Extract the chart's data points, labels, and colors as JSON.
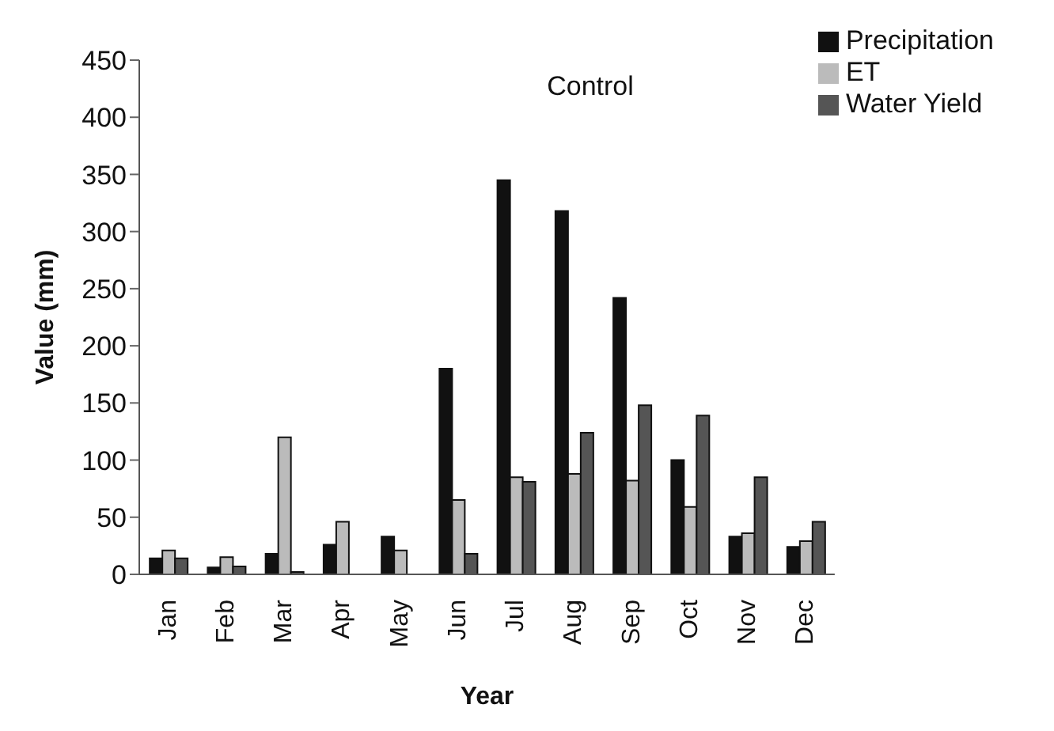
{
  "chart_data": {
    "type": "bar",
    "title": "Control",
    "xlabel": "Year",
    "ylabel": "Value (mm)",
    "categories": [
      "Jan",
      "Feb",
      "Mar",
      "Apr",
      "May",
      "Jun",
      "Jul",
      "Aug",
      "Sep",
      "Oct",
      "Nov",
      "Dec"
    ],
    "series": [
      {
        "name": "Precipitation",
        "color": "#111111",
        "values": [
          14,
          6,
          18,
          26,
          33,
          180,
          345,
          318,
          242,
          100,
          33,
          24
        ]
      },
      {
        "name": "ET",
        "color": "#bbbbbb",
        "values": [
          21,
          15,
          120,
          46,
          21,
          65,
          85,
          88,
          82,
          59,
          36,
          29
        ]
      },
      {
        "name": "Water Yield",
        "color": "#555555",
        "values": [
          14,
          7,
          2,
          0,
          0,
          18,
          81,
          124,
          148,
          139,
          85,
          46
        ]
      }
    ],
    "ylim": [
      0,
      450
    ],
    "yticks": [
      0,
      50,
      100,
      150,
      200,
      250,
      300,
      350,
      400,
      450
    ],
    "grid": false,
    "legend": "top right"
  }
}
